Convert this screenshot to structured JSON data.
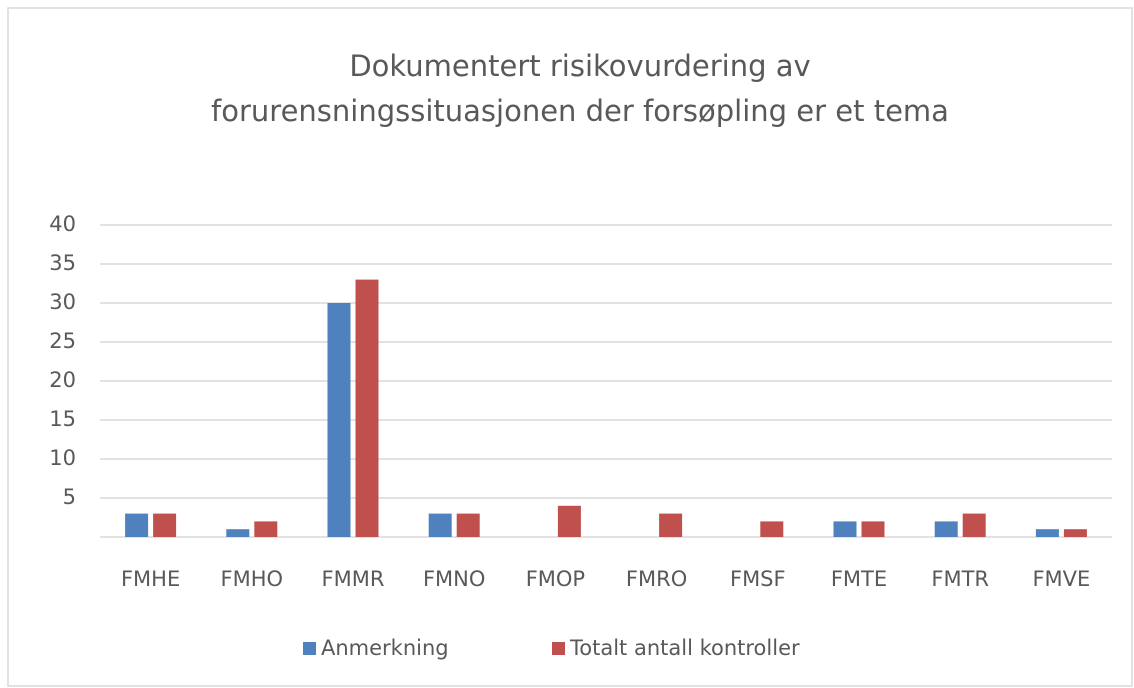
{
  "chart_data": {
    "type": "bar",
    "title": [
      "Dokumentert risikovurdering av",
      "forurensningssituasjonen der forsøpling er et tema"
    ],
    "categories": [
      "FMHE",
      "FMHO",
      "FMMR",
      "FMNO",
      "FMOP",
      "FMRO",
      "FMSF",
      "FMTE",
      "FMTR",
      "FMVE"
    ],
    "series": [
      {
        "name": "Anmerkning",
        "color": "#4e81bd",
        "values": [
          3,
          1,
          30,
          3,
          0,
          0,
          0,
          2,
          2,
          1
        ]
      },
      {
        "name": "Totalt antall kontroller",
        "color": "#c0504d",
        "values": [
          3,
          2,
          33,
          3,
          4,
          3,
          2,
          2,
          3,
          1
        ]
      }
    ],
    "ylim": [
      0,
      40
    ],
    "yticks": [
      5,
      10,
      15,
      20,
      25,
      30,
      35,
      40
    ],
    "grid": true,
    "legend": "bottom"
  }
}
